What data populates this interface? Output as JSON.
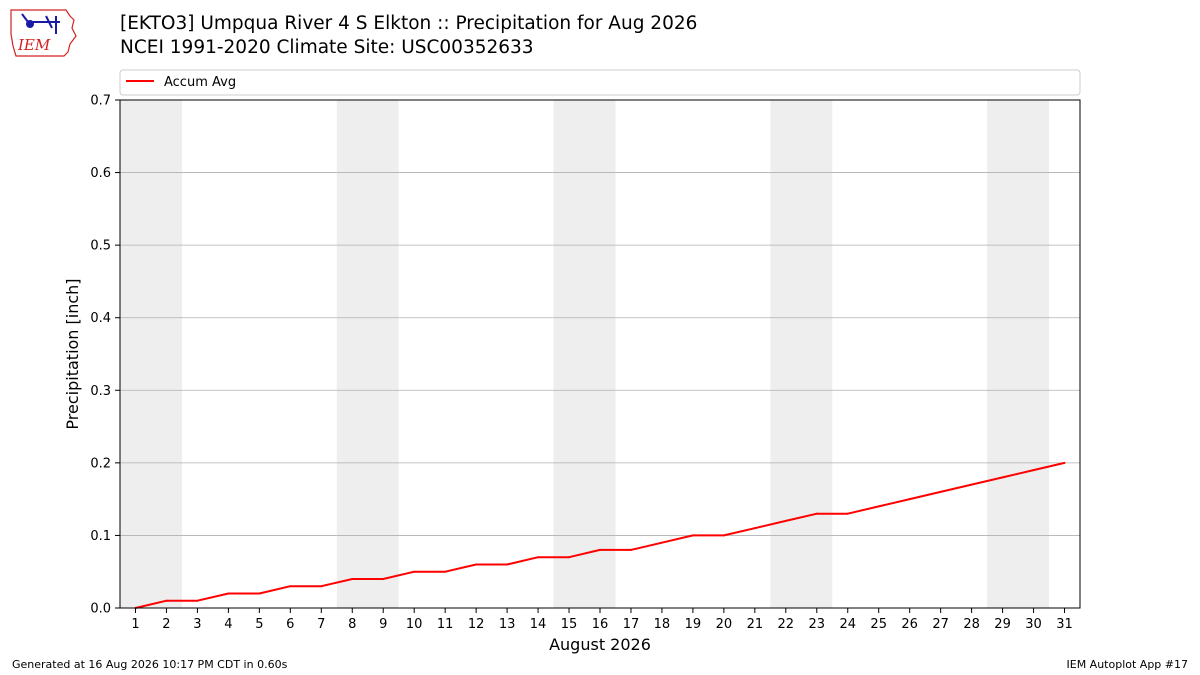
{
  "header": {
    "logo_text": "IEM",
    "title_line1": "[EKTO3] Umpqua River 4 S Elkton :: Precipitation for Aug 2026",
    "title_line2": "NCEI 1991-2020 Climate Site: USC00352633"
  },
  "footer": {
    "generated": "Generated at 16 Aug 2026 10:17 PM CDT in 0.60s",
    "app": "IEM Autoplot App #17"
  },
  "colors": {
    "line": "#ff0000",
    "weekend_band": "#eeeeee",
    "grid": "#b0b0b0",
    "logo": "#d62020",
    "logo_icon": "#1a1aa8"
  },
  "chart_data": {
    "type": "line",
    "xlabel": "August 2026",
    "ylabel": "Precipitation [inch]",
    "x": [
      1,
      2,
      3,
      4,
      5,
      6,
      7,
      8,
      9,
      10,
      11,
      12,
      13,
      14,
      15,
      16,
      17,
      18,
      19,
      20,
      21,
      22,
      23,
      24,
      25,
      26,
      27,
      28,
      29,
      30,
      31
    ],
    "series": [
      {
        "name": "Accum Avg",
        "values": [
          0.0,
          0.01,
          0.01,
          0.02,
          0.02,
          0.03,
          0.03,
          0.04,
          0.04,
          0.05,
          0.05,
          0.06,
          0.06,
          0.07,
          0.07,
          0.08,
          0.08,
          0.09,
          0.1,
          0.1,
          0.11,
          0.12,
          0.13,
          0.13,
          0.14,
          0.15,
          0.16,
          0.17,
          0.18,
          0.19,
          0.2
        ]
      }
    ],
    "xlim": [
      0.5,
      31.5
    ],
    "ylim": [
      0,
      0.7
    ],
    "yticks": [
      "0.0",
      "0.1",
      "0.2",
      "0.3",
      "0.4",
      "0.5",
      "0.6",
      "0.7"
    ],
    "xticks": [
      "1",
      "2",
      "3",
      "4",
      "5",
      "6",
      "7",
      "8",
      "9",
      "10",
      "11",
      "12",
      "13",
      "14",
      "15",
      "16",
      "17",
      "18",
      "19",
      "20",
      "21",
      "22",
      "23",
      "24",
      "25",
      "26",
      "27",
      "28",
      "29",
      "30",
      "31"
    ],
    "weekend_shading": [
      [
        1,
        2
      ],
      [
        8,
        9
      ],
      [
        15,
        16
      ],
      [
        22,
        23
      ],
      [
        29,
        30
      ]
    ],
    "grid": "horizontal",
    "legend": "top"
  }
}
